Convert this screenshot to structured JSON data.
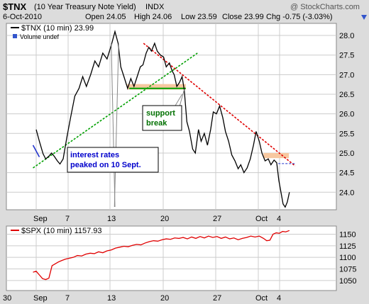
{
  "header": {
    "symbol": "$TNX",
    "name": "(10 Year Treasury Note Yield)",
    "exchange": "INDX",
    "date": "6-Oct-2010",
    "open": "Open 24.05",
    "high": "High 24.06",
    "low": "Low 23.59",
    "close": "Close 23.99",
    "chg": "Chg -0.75 (-3.03%)",
    "chg_icon": "triangle-down-icon",
    "brand": "@ StockCharts.com"
  },
  "colors": {
    "price": "#000000",
    "grid": "#cccccc",
    "spx": "#e00000",
    "trend_up": "#00a000",
    "trend_down": "#e00000",
    "zone": "#f7c8a0",
    "note_text": "#0000cc",
    "support_text": "#007000"
  },
  "chart_data": [
    {
      "type": "line",
      "legend": "$TNX (10 min) 23.99",
      "legend2": "Volume undef",
      "ylim": [
        23.5,
        28.2
      ],
      "yticks": [
        "28.0",
        "27.5",
        "27.0",
        "26.5",
        "26.0",
        "25.5",
        "25.0",
        "24.5",
        "24.0"
      ],
      "xlabels": [
        "Sep",
        "7",
        "13",
        "20",
        "27",
        "Oct",
        "4"
      ],
      "tnx_series": [
        [
          0.0,
          25.6
        ],
        [
          0.6,
          25.3
        ],
        [
          1.3,
          24.98
        ],
        [
          1.8,
          24.85
        ],
        [
          2.4,
          24.92
        ],
        [
          2.9,
          25.0
        ],
        [
          3.4,
          24.92
        ],
        [
          4.0,
          24.8
        ],
        [
          4.5,
          24.72
        ],
        [
          5.1,
          24.85
        ],
        [
          5.8,
          25.4
        ],
        [
          6.5,
          25.9
        ],
        [
          7.3,
          26.45
        ],
        [
          8.1,
          26.65
        ],
        [
          8.8,
          26.95
        ],
        [
          9.5,
          26.7
        ],
        [
          10.3,
          27.0
        ],
        [
          11.1,
          27.35
        ],
        [
          11.8,
          27.2
        ],
        [
          12.6,
          27.55
        ],
        [
          13.4,
          27.4
        ],
        [
          14.2,
          27.75
        ],
        [
          14.9,
          28.1
        ],
        [
          15.5,
          27.8
        ],
        [
          16.0,
          27.2
        ],
        [
          16.6,
          26.95
        ],
        [
          17.3,
          26.65
        ],
        [
          17.9,
          26.9
        ],
        [
          18.5,
          26.7
        ],
        [
          19.1,
          26.95
        ],
        [
          19.7,
          27.2
        ],
        [
          20.2,
          27.25
        ],
        [
          20.8,
          27.55
        ],
        [
          21.3,
          27.7
        ],
        [
          21.8,
          27.6
        ],
        [
          22.4,
          27.8
        ],
        [
          22.9,
          27.6
        ],
        [
          23.5,
          27.5
        ],
        [
          24.1,
          27.45
        ],
        [
          24.6,
          27.2
        ],
        [
          25.2,
          27.3
        ],
        [
          25.7,
          27.1
        ],
        [
          26.1,
          27.0
        ],
        [
          26.6,
          26.7
        ],
        [
          27.1,
          26.8
        ],
        [
          27.6,
          26.95
        ],
        [
          28.0,
          26.62
        ],
        [
          28.5,
          25.8
        ],
        [
          29.0,
          25.55
        ],
        [
          29.6,
          25.1
        ],
        [
          30.1,
          25.0
        ],
        [
          30.7,
          25.6
        ],
        [
          31.2,
          25.3
        ],
        [
          31.8,
          25.5
        ],
        [
          32.4,
          25.2
        ],
        [
          33.0,
          25.6
        ],
        [
          33.5,
          26.05
        ],
        [
          34.1,
          26.0
        ],
        [
          34.7,
          26.2
        ],
        [
          35.3,
          25.9
        ],
        [
          35.8,
          25.55
        ],
        [
          36.4,
          25.3
        ],
        [
          37.0,
          24.95
        ],
        [
          37.6,
          24.8
        ],
        [
          38.2,
          24.6
        ],
        [
          38.7,
          24.7
        ],
        [
          39.3,
          24.5
        ],
        [
          39.9,
          24.62
        ],
        [
          40.5,
          24.85
        ],
        [
          41.1,
          25.2
        ],
        [
          41.6,
          25.55
        ],
        [
          42.2,
          25.3
        ],
        [
          42.7,
          25.0
        ],
        [
          43.3,
          24.8
        ],
        [
          43.9,
          24.85
        ],
        [
          44.4,
          24.7
        ],
        [
          45.0,
          24.82
        ],
        [
          45.5,
          24.75
        ],
        [
          45.9,
          24.3
        ],
        [
          46.3,
          24.0
        ],
        [
          46.7,
          23.7
        ],
        [
          47.1,
          23.62
        ],
        [
          47.5,
          23.75
        ],
        [
          47.9,
          24.0
        ]
      ],
      "blue_segment": [
        [
          -0.6,
          25.2
        ],
        [
          0.6,
          24.9
        ]
      ],
      "green_trendline": [
        [
          -0.6,
          24.62
        ],
        [
          30.5,
          27.55
        ]
      ],
      "red_trendline": [
        [
          20.3,
          27.8
        ],
        [
          49.0,
          24.67
        ]
      ],
      "support_zone": {
        "x": [
          17.2,
          28.3
        ],
        "y": [
          26.62,
          26.76
        ]
      },
      "support_line": {
        "x": [
          17.6,
          28.3
        ],
        "y": 26.65
      },
      "resistance_zone": {
        "x": [
          43.0,
          47.8
        ],
        "y": [
          24.87,
          25.0
        ]
      },
      "dashed_level": {
        "x": [
          45.8,
          49.0
        ],
        "y": 24.73
      }
    },
    {
      "type": "line",
      "legend": "$SPX (10 min) 1157.93",
      "ylim": [
        1040,
        1160
      ],
      "yticks": [
        "1150",
        "1125",
        "1100",
        "1075",
        "1050"
      ],
      "xlabels": [
        "30",
        "Sep",
        "7",
        "13",
        "20",
        "27",
        "Oct",
        "4"
      ],
      "spx_series": [
        [
          -0.6,
          1068
        ],
        [
          0.0,
          1070
        ],
        [
          0.6,
          1062
        ],
        [
          1.2,
          1054
        ],
        [
          1.8,
          1052
        ],
        [
          2.4,
          1055
        ],
        [
          3.0,
          1082
        ],
        [
          3.6,
          1086
        ],
        [
          4.2,
          1090
        ],
        [
          4.8,
          1093
        ],
        [
          5.5,
          1096
        ],
        [
          6.2,
          1098
        ],
        [
          7.0,
          1100
        ],
        [
          7.8,
          1104
        ],
        [
          8.6,
          1103
        ],
        [
          9.4,
          1107
        ],
        [
          10.2,
          1109
        ],
        [
          11.0,
          1108
        ],
        [
          11.8,
          1112
        ],
        [
          12.6,
          1110
        ],
        [
          13.4,
          1114
        ],
        [
          14.2,
          1116
        ],
        [
          15.0,
          1120
        ],
        [
          15.8,
          1122
        ],
        [
          16.6,
          1124
        ],
        [
          17.4,
          1123
        ],
        [
          18.2,
          1126
        ],
        [
          19.0,
          1128
        ],
        [
          19.8,
          1127
        ],
        [
          20.6,
          1131
        ],
        [
          21.4,
          1134
        ],
        [
          22.2,
          1136
        ],
        [
          23.0,
          1135
        ],
        [
          23.8,
          1138
        ],
        [
          24.6,
          1140
        ],
        [
          25.4,
          1139
        ],
        [
          26.2,
          1142
        ],
        [
          27.0,
          1141
        ],
        [
          27.8,
          1143
        ],
        [
          28.6,
          1140
        ],
        [
          29.4,
          1144
        ],
        [
          30.2,
          1141
        ],
        [
          31.0,
          1145
        ],
        [
          31.8,
          1142
        ],
        [
          32.6,
          1146
        ],
        [
          33.4,
          1143
        ],
        [
          34.2,
          1145
        ],
        [
          35.0,
          1141
        ],
        [
          35.8,
          1144
        ],
        [
          36.6,
          1140
        ],
        [
          37.4,
          1142
        ],
        [
          38.2,
          1138
        ],
        [
          39.0,
          1141
        ],
        [
          39.8,
          1143
        ],
        [
          40.6,
          1146
        ],
        [
          41.4,
          1144
        ],
        [
          42.2,
          1146
        ],
        [
          43.0,
          1141
        ],
        [
          43.6,
          1136
        ],
        [
          44.2,
          1137
        ],
        [
          44.8,
          1150
        ],
        [
          45.4,
          1153
        ],
        [
          46.0,
          1152
        ],
        [
          46.6,
          1156
        ],
        [
          47.2,
          1155
        ],
        [
          47.9,
          1158
        ]
      ]
    }
  ],
  "annotations": {
    "support_line1": "support",
    "support_line2": "break",
    "rates_line1": "interest rates",
    "rates_line2": "peaked on 10 Sept."
  }
}
